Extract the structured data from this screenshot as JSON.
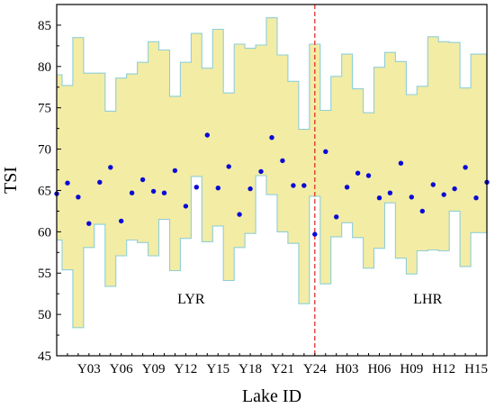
{
  "chart_data": {
    "type": "step-band-scatter",
    "xlabel": "Lake ID",
    "ylabel": "TSI",
    "ylim": [
      45,
      87.5
    ],
    "yticks": [
      45,
      50,
      55,
      60,
      65,
      70,
      75,
      80,
      85
    ],
    "n_lakes": 41,
    "xtick_labels": [
      {
        "index": 3,
        "label": "Y03"
      },
      {
        "index": 6,
        "label": "Y06"
      },
      {
        "index": 9,
        "label": "Y09"
      },
      {
        "index": 12,
        "label": "Y12"
      },
      {
        "index": 15,
        "label": "Y15"
      },
      {
        "index": 18,
        "label": "Y18"
      },
      {
        "index": 21,
        "label": "Y21"
      },
      {
        "index": 24,
        "label": "Y24"
      },
      {
        "index": 27,
        "label": "H03"
      },
      {
        "index": 30,
        "label": "H06"
      },
      {
        "index": 33,
        "label": "H09"
      },
      {
        "index": 36,
        "label": "H12"
      },
      {
        "index": 39,
        "label": "H15"
      }
    ],
    "region_labels": [
      {
        "label": "LYR",
        "index": 12.5,
        "y": 51.3
      },
      {
        "label": "LHR",
        "index": 34.5,
        "y": 51.3
      }
    ],
    "divider_index": 24,
    "band_upper": [
      79.0,
      77.7,
      83.5,
      79.2,
      79.2,
      74.6,
      78.6,
      79.1,
      80.5,
      83.0,
      82.0,
      76.4,
      80.5,
      84.0,
      79.8,
      84.5,
      76.8,
      82.7,
      82.2,
      82.6,
      85.9,
      81.4,
      78.2,
      72.4,
      82.7,
      74.7,
      78.8,
      81.5,
      77.3,
      74.4,
      79.9,
      81.7,
      80.6,
      76.6,
      77.6,
      83.6,
      83.0,
      82.9,
      77.4,
      81.5,
      81.5
    ],
    "band_lower": [
      59.0,
      55.4,
      48.4,
      58.1,
      60.9,
      53.4,
      57.1,
      59.0,
      58.7,
      57.1,
      61.5,
      55.3,
      59.2,
      66.7,
      58.8,
      60.7,
      54.1,
      58.1,
      59.8,
      66.8,
      64.5,
      60.0,
      58.6,
      51.3,
      64.3,
      53.7,
      59.4,
      61.1,
      59.3,
      55.6,
      58.0,
      63.5,
      56.8,
      54.9,
      57.7,
      57.8,
      57.7,
      62.5,
      55.8,
      59.9,
      59.9
    ],
    "points": [
      64.6,
      65.9,
      64.2,
      61.0,
      66.0,
      67.8,
      61.3,
      64.7,
      66.3,
      64.9,
      64.7,
      67.4,
      63.1,
      65.4,
      71.7,
      65.3,
      67.9,
      62.1,
      65.2,
      67.3,
      71.4,
      68.6,
      65.6,
      65.6,
      59.7,
      69.7,
      61.8,
      65.4,
      67.1,
      66.8,
      64.1,
      64.7,
      68.3,
      64.2,
      62.5,
      65.7,
      64.5,
      65.2,
      67.8,
      64.1,
      66.0
    ],
    "colors": {
      "band_fill": "#f3eca4",
      "band_edge": "#8ecfd8",
      "points": "#0a0ad6",
      "divider": "#e0201c",
      "axis": "#000000"
    }
  }
}
